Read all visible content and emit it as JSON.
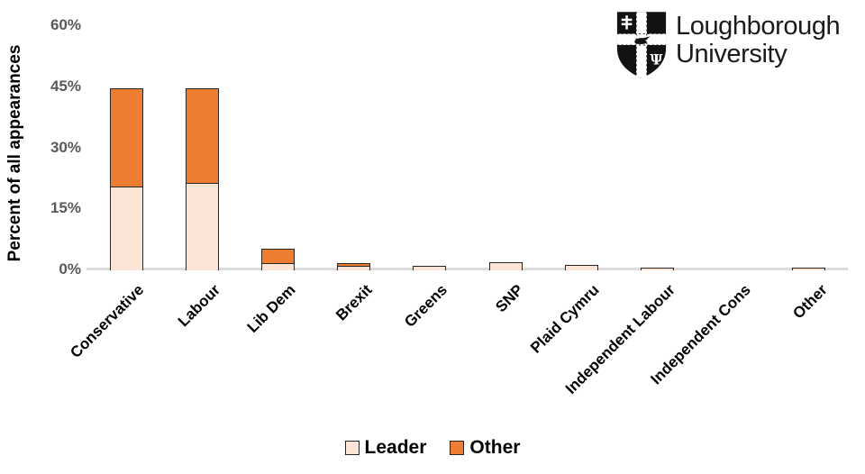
{
  "logo": {
    "line1": "Loughborough",
    "line2": "University",
    "shield_icon": "loughborough-shield"
  },
  "chart_data": {
    "type": "bar",
    "subtype": "stacked-vertical",
    "title": "",
    "xlabel": "",
    "ylabel": "Percent of all appearances",
    "ylim": [
      0,
      60
    ],
    "yticks": [
      0,
      15,
      30,
      45,
      60
    ],
    "ytick_labels": [
      "0%",
      "15%",
      "30%",
      "45%",
      "60%"
    ],
    "grid": false,
    "legend_position": "bottom",
    "categories": [
      "Conservative",
      "Labour",
      "Lib Dem",
      "Brexit",
      "Greens",
      "SNP",
      "Plaid Cymru",
      "Independent Labour",
      "Independent Cons",
      "Other"
    ],
    "series": [
      {
        "name": "Leader",
        "color": "#FCE4D6",
        "values": [
          20.3,
          21.2,
          1.6,
          0.9,
          0.8,
          1.8,
          1.1,
          0.4,
          0,
          0.3
        ]
      },
      {
        "name": "Other",
        "color": "#ED7D31",
        "values": [
          24.2,
          23.2,
          3.4,
          0.6,
          0,
          0,
          0,
          0,
          0,
          0
        ]
      }
    ],
    "totals": [
      44.5,
      44.4,
      5.0,
      1.5,
      0.8,
      1.8,
      1.1,
      0.4,
      0,
      0.3
    ],
    "colors": {
      "bar_border": "#262626",
      "axis_line": "#dcdcdc",
      "ytick_text": "#595959",
      "label_text": "#000000"
    }
  }
}
